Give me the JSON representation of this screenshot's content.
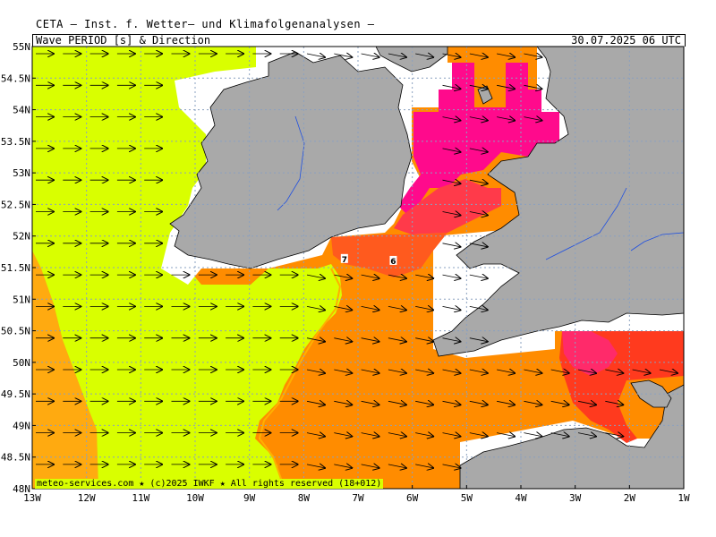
{
  "header": {
    "institution": "CETA – Inst. f. Wetter– und Klimafolgenanalysen –",
    "product": "Wave_PERIOD_[s]_&_Direction",
    "valid_time": "30.07.2025 06 UTC"
  },
  "footer": {
    "credit": "meteo-services.com ★ (c)2025 IWKF ★ All rights reserved (18+012)"
  },
  "axes": {
    "lat_labels": [
      "55N",
      "54.5N",
      "54N",
      "53.5N",
      "53N",
      "52.5N",
      "52N",
      "51.5N",
      "51N",
      "50.5N",
      "50N",
      "49.5N",
      "49N",
      "48.5N",
      "48N"
    ],
    "lon_labels": [
      "13W",
      "12W",
      "11W",
      "10W",
      "9W",
      "8W",
      "7W",
      "6W",
      "5W",
      "4W",
      "3W",
      "2W",
      "1W"
    ]
  },
  "contour_labels": [
    {
      "text": "7",
      "lon": -7.25,
      "lat": 51.63
    },
    {
      "text": "6",
      "lon": -6.35,
      "lat": 51.6
    }
  ],
  "colors": {
    "land": "#a9a9a9",
    "sea_lt6": "#d9ff00",
    "period_7_8": "#ff9a0a",
    "period_8_9": "#ff8c00",
    "period_9_10": "#ff5a1e",
    "period_ge10": "#ff0a8c",
    "graticule": "#8aa0c0"
  },
  "arrow_direction": "east"
}
